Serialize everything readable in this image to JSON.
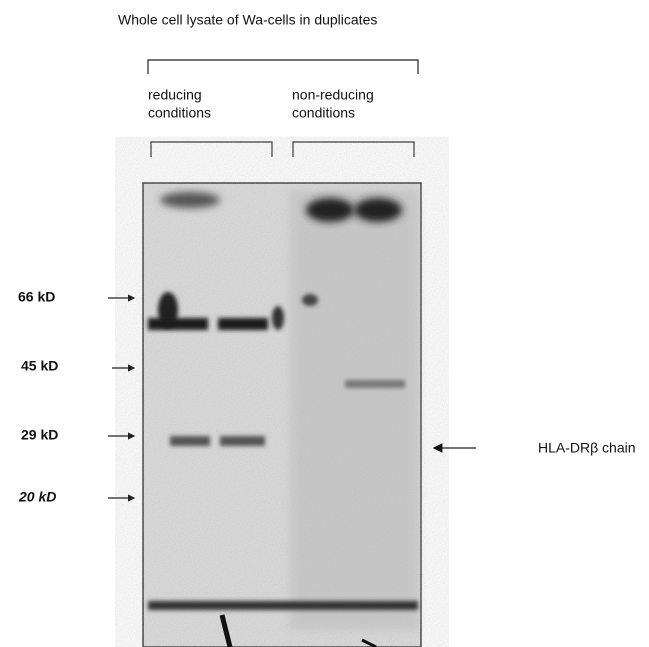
{
  "header": {
    "title": "Whole cell lysate of Wa-cells in duplicates"
  },
  "groups": [
    {
      "lines": [
        "reducing",
        "conditions"
      ]
    },
    {
      "lines": [
        "non-reducing",
        "conditions"
      ]
    }
  ],
  "markers": [
    "66 kD",
    "45 kD",
    "29 kD",
    "20 kD"
  ],
  "annotation": "HLA-DRβ chain"
}
